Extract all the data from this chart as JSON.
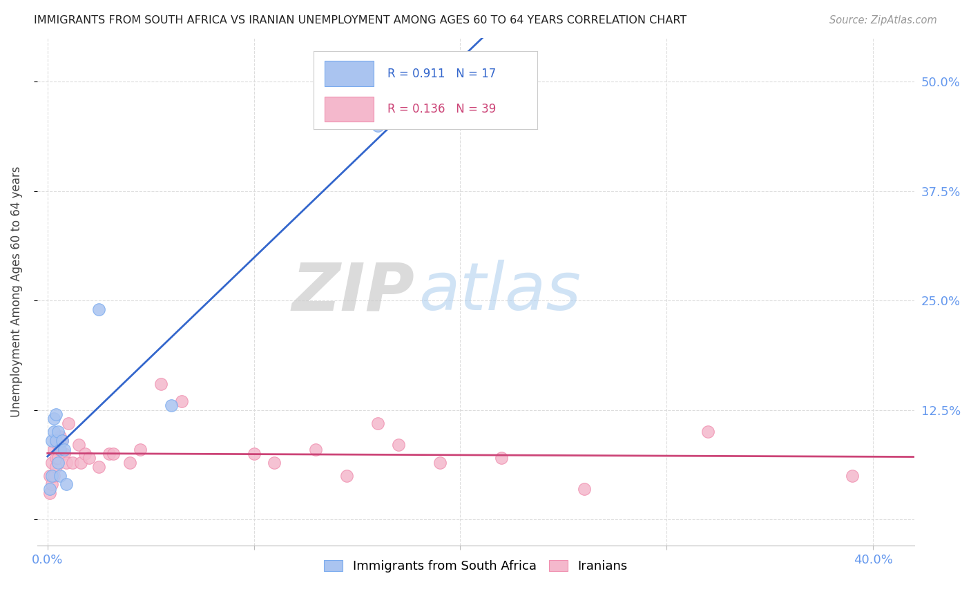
{
  "title": "IMMIGRANTS FROM SOUTH AFRICA VS IRANIAN UNEMPLOYMENT AMONG AGES 60 TO 64 YEARS CORRELATION CHART",
  "source": "Source: ZipAtlas.com",
  "xlim": [
    -0.005,
    0.42
  ],
  "ylim": [
    -0.03,
    0.55
  ],
  "blue_r": 0.911,
  "blue_n": 17,
  "pink_r": 0.136,
  "pink_n": 39,
  "blue_color": "#aac4f0",
  "pink_color": "#f4b8cc",
  "blue_edge_color": "#7aabee",
  "pink_edge_color": "#f090b0",
  "blue_line_color": "#3366cc",
  "pink_line_color": "#cc4477",
  "legend_label1": "Immigrants from South Africa",
  "legend_label2": "Iranians",
  "ylabel": "Unemployment Among Ages 60 to 64 years",
  "watermark_zip": "ZIP",
  "watermark_atlas": "atlas",
  "blue_x": [
    0.001,
    0.002,
    0.002,
    0.003,
    0.003,
    0.004,
    0.004,
    0.005,
    0.005,
    0.006,
    0.006,
    0.007,
    0.008,
    0.009,
    0.025,
    0.06,
    0.16
  ],
  "blue_y": [
    0.035,
    0.05,
    0.09,
    0.1,
    0.115,
    0.09,
    0.12,
    0.065,
    0.1,
    0.08,
    0.05,
    0.09,
    0.08,
    0.04,
    0.24,
    0.13,
    0.45
  ],
  "pink_x": [
    0.001,
    0.001,
    0.002,
    0.002,
    0.003,
    0.003,
    0.004,
    0.004,
    0.004,
    0.005,
    0.005,
    0.006,
    0.007,
    0.008,
    0.009,
    0.01,
    0.012,
    0.015,
    0.016,
    0.018,
    0.02,
    0.025,
    0.03,
    0.032,
    0.04,
    0.045,
    0.055,
    0.065,
    0.1,
    0.11,
    0.13,
    0.145,
    0.16,
    0.17,
    0.19,
    0.22,
    0.26,
    0.32,
    0.39
  ],
  "pink_y": [
    0.03,
    0.05,
    0.04,
    0.065,
    0.05,
    0.08,
    0.06,
    0.07,
    0.09,
    0.07,
    0.085,
    0.095,
    0.09,
    0.075,
    0.065,
    0.11,
    0.065,
    0.085,
    0.065,
    0.075,
    0.07,
    0.06,
    0.075,
    0.075,
    0.065,
    0.08,
    0.155,
    0.135,
    0.075,
    0.065,
    0.08,
    0.05,
    0.11,
    0.085,
    0.065,
    0.07,
    0.035,
    0.1,
    0.05
  ],
  "xtick_positions": [
    0.0,
    0.1,
    0.2,
    0.3,
    0.4
  ],
  "xtick_labels": [
    "0.0%",
    "",
    "",
    "",
    "40.0%"
  ],
  "ytick_positions": [
    0.0,
    0.125,
    0.25,
    0.375,
    0.5
  ],
  "ytick_labels_right": [
    "",
    "12.5%",
    "25.0%",
    "37.5%",
    "50.0%"
  ],
  "tick_color": "#6699ee",
  "grid_color": "#dddddd",
  "title_fontsize": 11.5,
  "axis_fontsize": 13,
  "ylabel_fontsize": 12
}
